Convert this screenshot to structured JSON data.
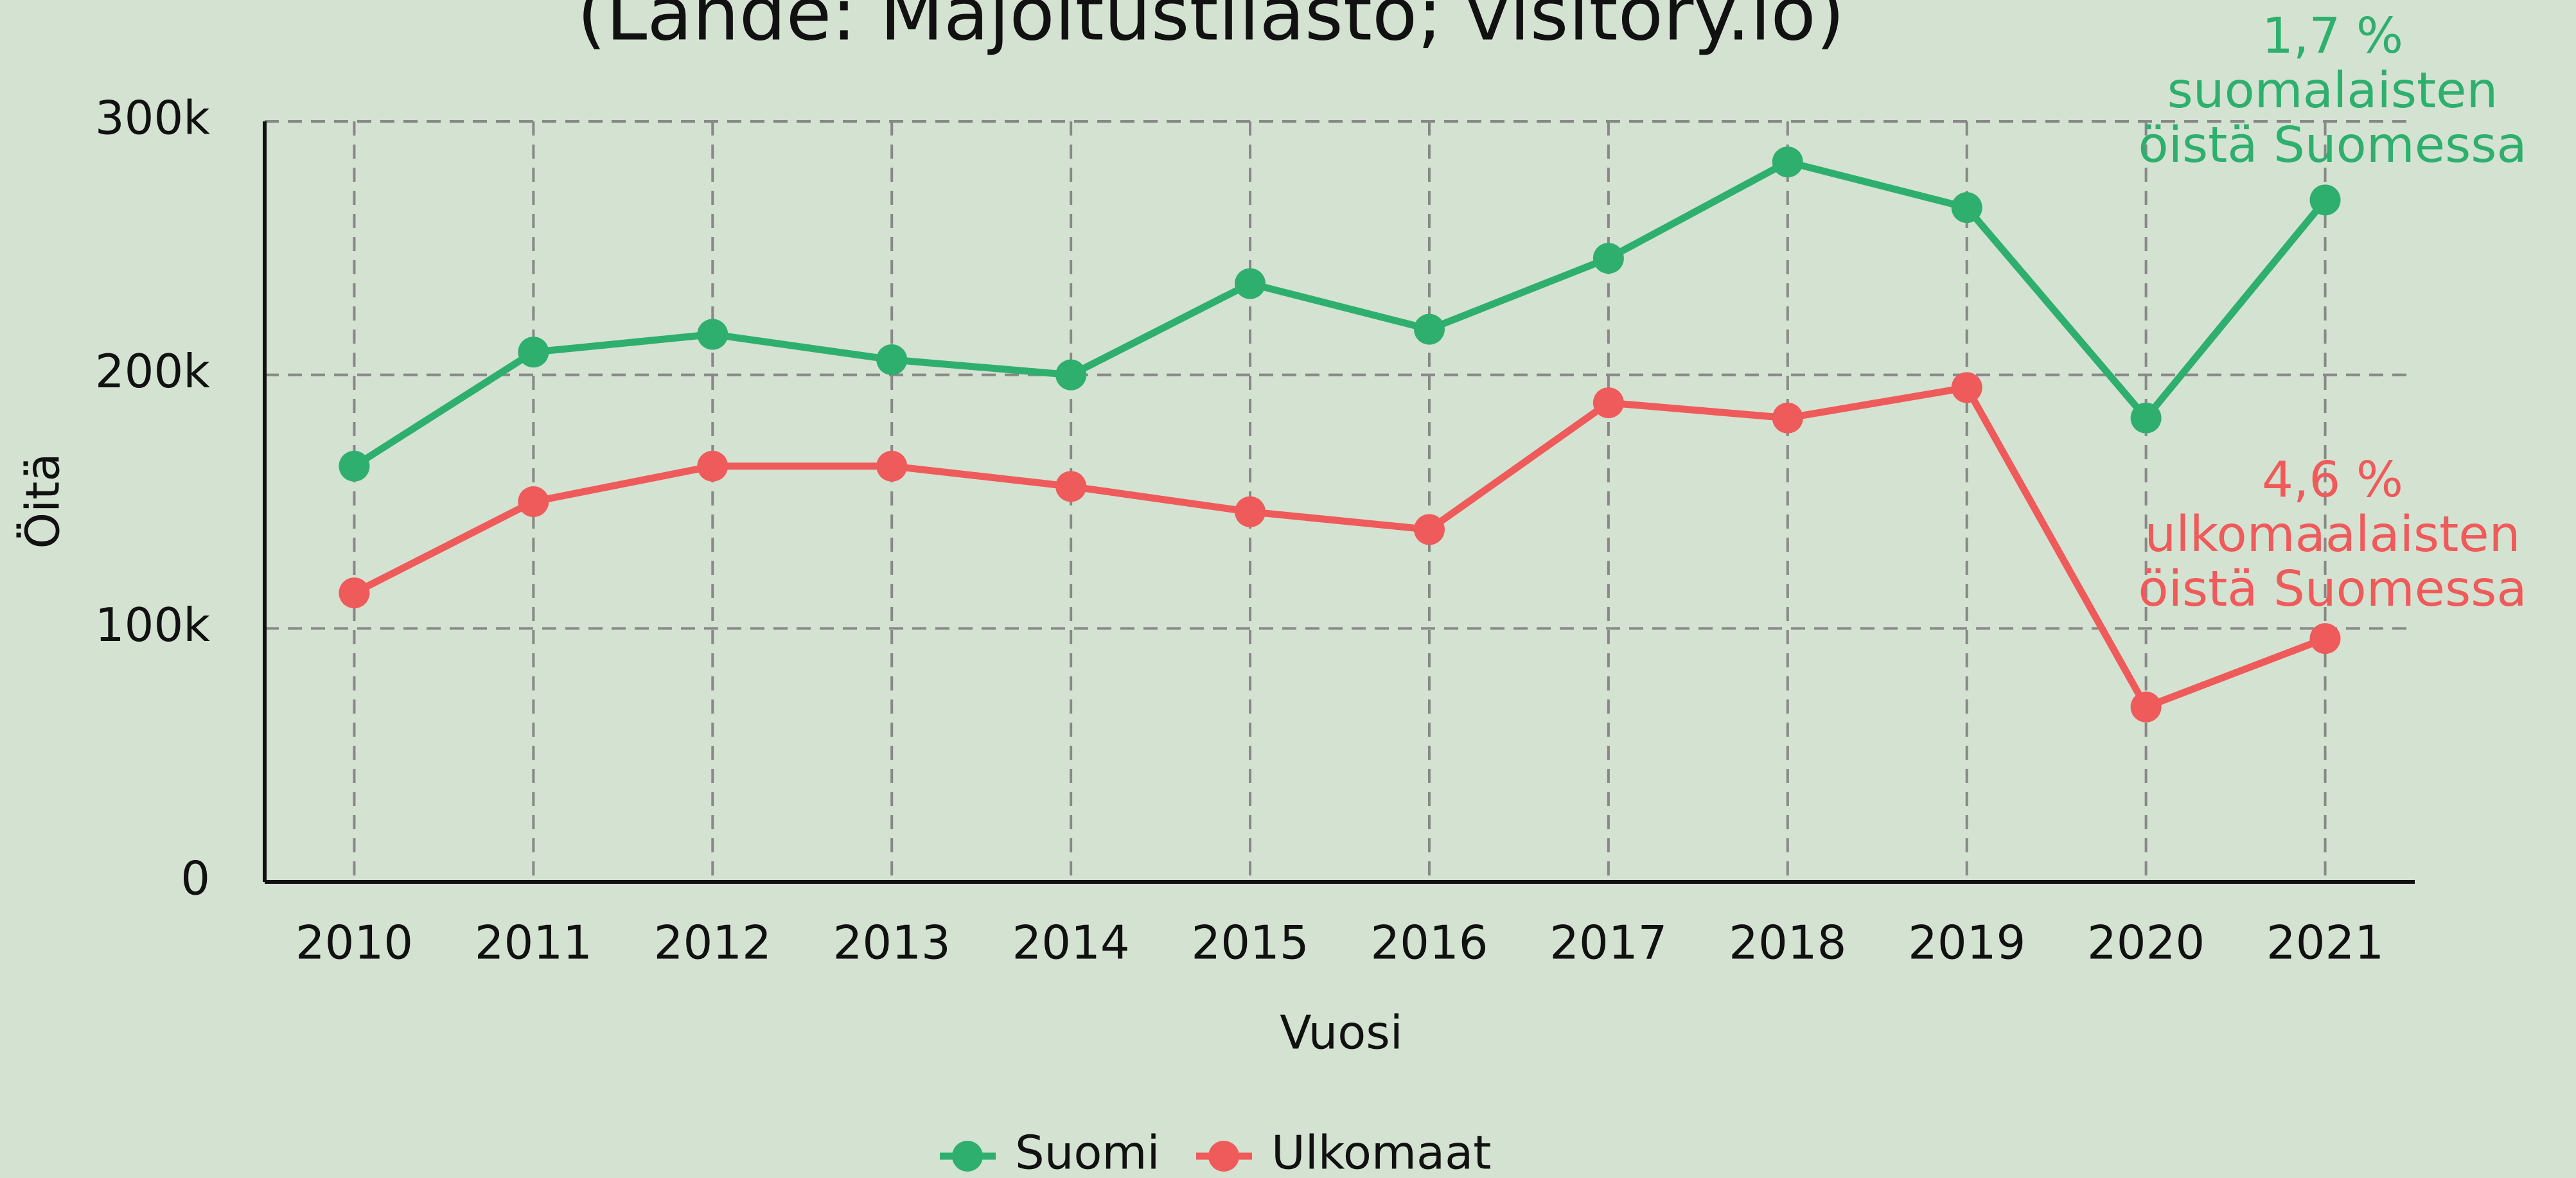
{
  "chart_data": {
    "type": "line",
    "title": "(Lähde: Majoitustilasto; visitory.io)",
    "xlabel": "Vuosi",
    "ylabel": "Öitä",
    "categories": [
      "2010",
      "2011",
      "2012",
      "2013",
      "2014",
      "2015",
      "2016",
      "2017",
      "2018",
      "2019",
      "2020",
      "2021"
    ],
    "series": [
      {
        "name": "Suomi",
        "color": "#2eaf6e",
        "values": [
          164000,
          209000,
          216000,
          206000,
          200000,
          236000,
          218000,
          246000,
          284000,
          266000,
          183000,
          269000
        ]
      },
      {
        "name": "Ulkomaat",
        "color": "#ef5a5a",
        "values": [
          114000,
          150000,
          164000,
          164000,
          156000,
          146000,
          139000,
          189000,
          183000,
          195000,
          69000,
          96000
        ]
      }
    ],
    "ylim": [
      0,
      300000
    ],
    "yticks": [
      0,
      {
        "value": 100000,
        "label": "100k"
      },
      {
        "value": 200000,
        "label": "200k"
      },
      {
        "value": 300000,
        "label": "300k"
      }
    ],
    "grid": true,
    "legend": "bottom",
    "annotations": [
      {
        "lines": [
          "1,7 %",
          "suomalaisten",
          "öistä Suomessa"
        ],
        "color": "#2eaf6e"
      },
      {
        "lines": [
          "4,6 %",
          "ulkomaalaisten",
          "öistä Suomessa"
        ],
        "color": "#ef5a5a"
      }
    ]
  }
}
